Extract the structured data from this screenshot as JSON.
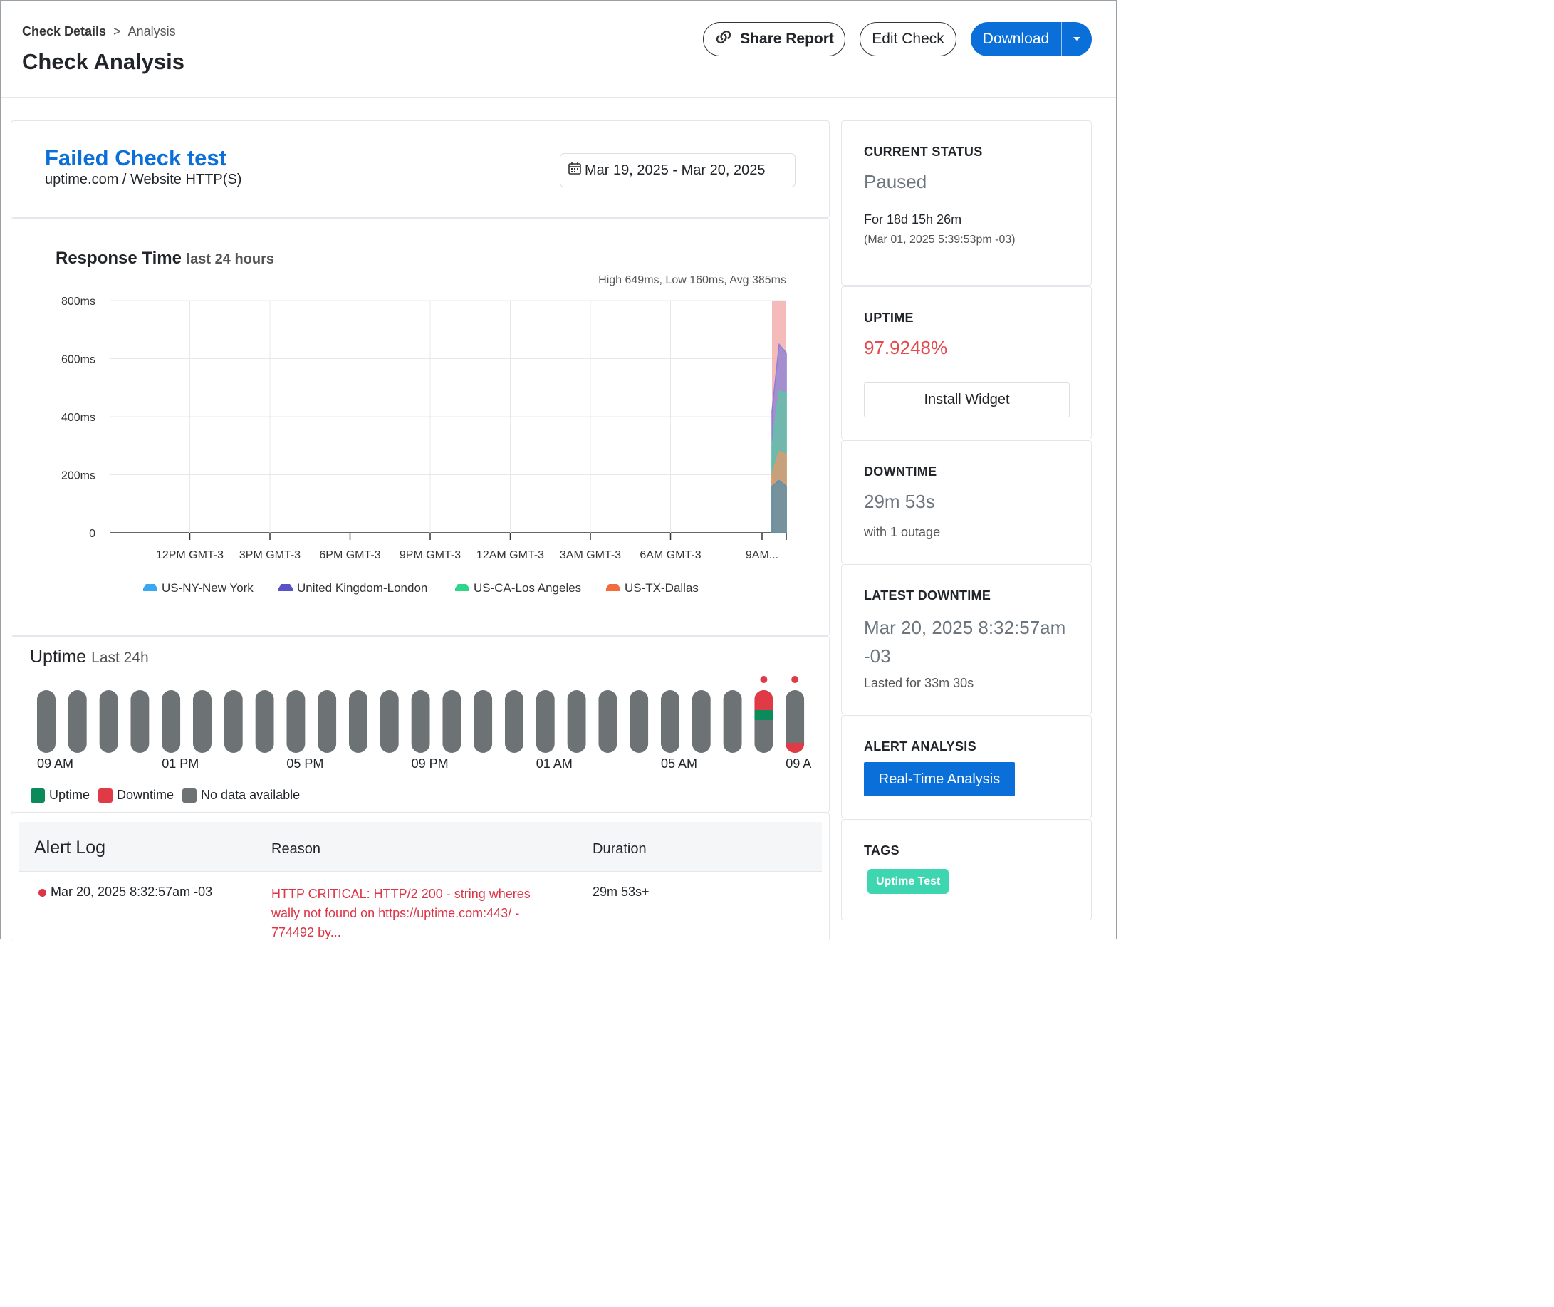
{
  "header": {
    "breadcrumb": {
      "parent": "Check Details",
      "separator": ">",
      "current": "Analysis"
    },
    "title": "Check Analysis",
    "buttons": {
      "share": "Share Report",
      "edit": "Edit Check",
      "download": "Download"
    },
    "icons": {
      "share": "link-icon",
      "download_caret": "caret-down-icon"
    }
  },
  "check": {
    "name": "Failed Check test",
    "subtitle": "uptime.com / Website HTTP(S)",
    "date_range": "Mar 19, 2025 - Mar 20, 2025",
    "date_icon": "calendar-icon"
  },
  "response_chart": {
    "title": "Response Time",
    "title_suffix": "last 24 hours",
    "stats": "High 649ms, Low 160ms, Avg 385ms",
    "legend": [
      "US-NY-New York",
      "United Kingdom-London",
      "US-CA-Los Angeles",
      "US-TX-Dallas"
    ]
  },
  "chart_data": {
    "type": "area",
    "title": "Response Time",
    "subtitle": "last 24 hours",
    "y_ticks": [
      "800ms",
      "600ms",
      "400ms",
      "200ms",
      "0"
    ],
    "ylim": [
      0,
      800
    ],
    "x_ticks": [
      "12PM GMT-3",
      "3PM GMT-3",
      "6PM GMT-3",
      "9PM GMT-3",
      "12AM GMT-3",
      "3AM GMT-3",
      "6AM GMT-3",
      "9AM..."
    ],
    "grid": true,
    "legend_position": "bottom",
    "series": [
      {
        "name": "United Kingdom-London",
        "color": "#8a7fd6",
        "values": [
          420,
          649,
          620
        ]
      },
      {
        "name": "US-CA-Los Angeles",
        "color": "#5fc4a3",
        "values": [
          300,
          490,
          480
        ]
      },
      {
        "name": "US-TX-Dallas",
        "color": "#e39a6a",
        "values": [
          200,
          280,
          270
        ]
      },
      {
        "name": "US-NY-New York",
        "color": "#5b8fa8",
        "values": [
          160,
          180,
          160
        ]
      }
    ],
    "downtime_band": {
      "color": "#f2a3a3"
    }
  },
  "uptime": {
    "title": "Uptime",
    "title_suffix": "Last 24h",
    "bar_count": 25,
    "bar_status": [
      "none",
      "none",
      "none",
      "none",
      "none",
      "none",
      "none",
      "none",
      "none",
      "none",
      "none",
      "none",
      "none",
      "none",
      "none",
      "none",
      "none",
      "none",
      "none",
      "none",
      "none",
      "none",
      "none",
      "mixed",
      "down-tail"
    ],
    "hour_labels": [
      "09 AM",
      "01 PM",
      "05 PM",
      "09 PM",
      "01 AM",
      "05 AM",
      "09 A"
    ],
    "legend": {
      "uptime": "Uptime",
      "downtime": "Downtime",
      "nodata": "No data available"
    },
    "colors": {
      "uptime": "#0b8a5b",
      "downtime": "#e03a46",
      "nodata": "#6d7275"
    }
  },
  "alert_log": {
    "title": "Alert Log",
    "columns": {
      "reason": "Reason",
      "duration": "Duration"
    },
    "rows": [
      {
        "date": "Mar 20, 2025 8:32:57am -03",
        "reason": "HTTP CRITICAL: HTTP/2 200 - string wheres wally not found on https://uptime.com:443/ - 774492 by...",
        "duration": "29m 53s+"
      }
    ]
  },
  "sidebar": {
    "current_status": {
      "label": "CURRENT STATUS",
      "value": "Paused",
      "duration": "For 18d 15h 26m",
      "since": "(Mar 01, 2025 5:39:53pm -03)"
    },
    "uptime": {
      "label": "UPTIME",
      "value": "97.9248%",
      "button": "Install Widget"
    },
    "downtime": {
      "label": "DOWNTIME",
      "value": "29m 53s",
      "note": "with 1 outage"
    },
    "latest_downtime": {
      "label": "LATEST DOWNTIME",
      "value": "Mar 20, 2025 8:32:57am -03",
      "note": "Lasted for 33m 30s"
    },
    "alert_analysis": {
      "label": "ALERT ANALYSIS",
      "button": "Real-Time Analysis"
    },
    "tags": {
      "label": "TAGS",
      "items": [
        "Uptime Test"
      ]
    }
  }
}
